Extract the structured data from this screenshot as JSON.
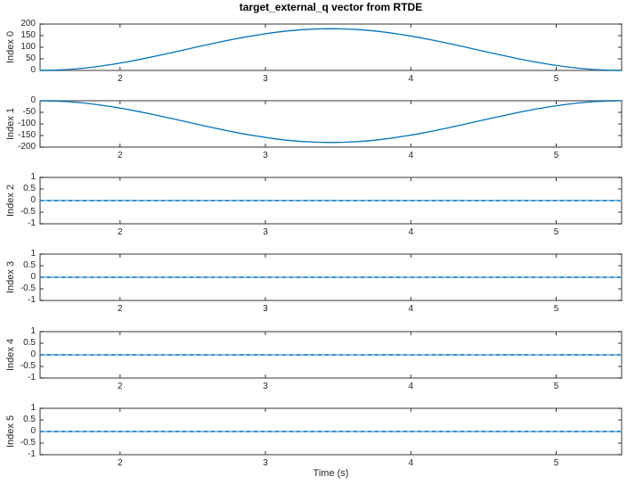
{
  "chart_data": {
    "type": "line",
    "title": "target_external_q vector from RTDE",
    "xlabel": "Time (s)",
    "xlim": [
      1.45,
      5.45
    ],
    "xticks": [
      2,
      3,
      4,
      5
    ],
    "grid": false,
    "legend": null,
    "line_color": "#0072BD",
    "line_color_light": "#7ab6dd",
    "axis_color": "#6e6e6e",
    "tick_color": "#333333",
    "x": [
      1.45,
      1.55,
      1.65,
      1.75,
      1.85,
      1.95,
      2.05,
      2.15,
      2.25,
      2.35,
      2.45,
      2.55,
      2.65,
      2.75,
      2.85,
      2.95,
      3.05,
      3.15,
      3.25,
      3.35,
      3.45,
      3.55,
      3.65,
      3.75,
      3.85,
      3.95,
      4.05,
      4.15,
      4.25,
      4.35,
      4.45,
      4.55,
      4.65,
      4.75,
      4.85,
      4.95,
      5.05,
      5.15,
      5.25,
      5.35,
      5.45
    ],
    "subplots": [
      {
        "ylabel": "Index 0",
        "ylim": [
          0,
          200
        ],
        "yticks": [
          0,
          50,
          100,
          150,
          200
        ],
        "values": [
          0,
          1.1,
          4.4,
          9.8,
          17.2,
          26.4,
          37.1,
          49.1,
          62.2,
          75.9,
          90,
          104.1,
          117.8,
          130.9,
          142.9,
          153.6,
          162.8,
          170.2,
          175.6,
          178.9,
          180,
          178.9,
          175.6,
          170.2,
          162.8,
          153.6,
          142.9,
          130.9,
          117.8,
          104.1,
          90,
          75.9,
          62.2,
          49.1,
          37.1,
          26.4,
          17.2,
          9.8,
          4.4,
          1.1,
          0
        ]
      },
      {
        "ylabel": "Index 1",
        "ylim": [
          -200,
          0
        ],
        "yticks": [
          -200,
          -150,
          -100,
          -50,
          0
        ],
        "values": [
          0,
          -1.1,
          -4.4,
          -9.8,
          -17.2,
          -26.4,
          -37.1,
          -49.1,
          -62.2,
          -75.9,
          -90,
          -104.1,
          -117.8,
          -130.9,
          -142.9,
          -153.6,
          -162.8,
          -170.2,
          -175.6,
          -178.9,
          -180,
          -178.9,
          -175.6,
          -170.2,
          -162.8,
          -153.6,
          -142.9,
          -130.9,
          -117.8,
          -104.1,
          -90,
          -75.9,
          -62.2,
          -49.1,
          -37.1,
          -26.4,
          -17.2,
          -9.8,
          -4.4,
          -1.1,
          0
        ]
      },
      {
        "ylabel": "Index 2",
        "ylim": [
          -1,
          1
        ],
        "yticks": [
          -1,
          -0.5,
          0,
          0.5,
          1
        ],
        "x": [
          1.45,
          5.45
        ],
        "values": [
          0,
          0
        ]
      },
      {
        "ylabel": "Index 3",
        "ylim": [
          -1,
          1
        ],
        "yticks": [
          -1,
          -0.5,
          0,
          0.5,
          1
        ],
        "x": [
          1.45,
          5.45
        ],
        "values": [
          0,
          0
        ]
      },
      {
        "ylabel": "Index 4",
        "ylim": [
          -1,
          1
        ],
        "yticks": [
          -1,
          -0.5,
          0,
          0.5,
          1
        ],
        "x": [
          1.45,
          5.45
        ],
        "values": [
          0,
          0
        ]
      },
      {
        "ylabel": "Index 5",
        "ylim": [
          -1,
          1
        ],
        "yticks": [
          -1,
          -0.5,
          0,
          0.5,
          1
        ],
        "x": [
          1.45,
          5.45
        ],
        "values": [
          0,
          0
        ]
      }
    ]
  }
}
